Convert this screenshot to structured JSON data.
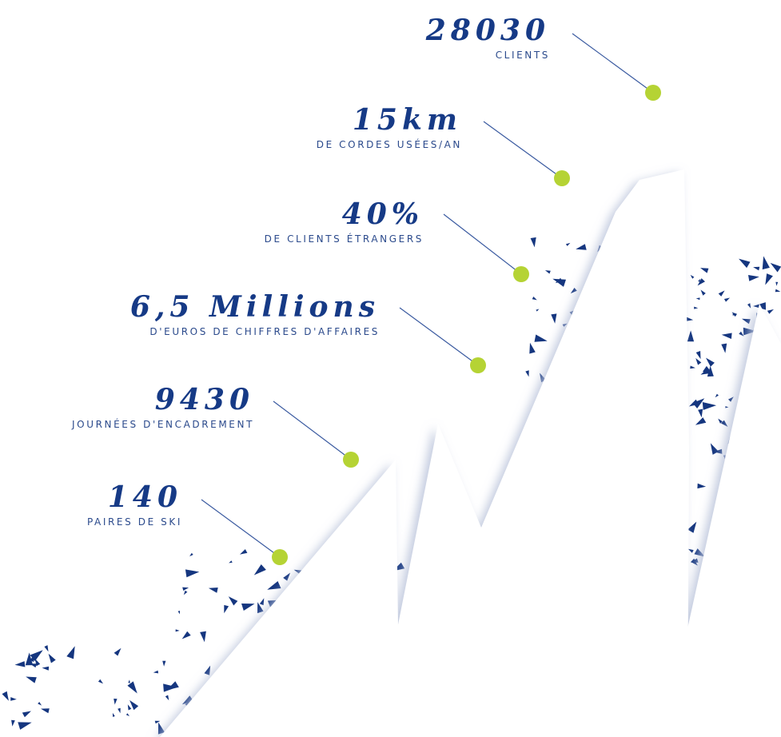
{
  "stats": [
    {
      "value": "28030",
      "label": "CLIENTS"
    },
    {
      "value": "15km",
      "label": "DE CORDES USÉES/AN"
    },
    {
      "value": "40%",
      "label": "DE CLIENTS ÉTRANGERS"
    },
    {
      "value": "6,5 Millions",
      "label": "D'EUROS DE CHIFFRES D'AFFAIRES"
    },
    {
      "value": "9430",
      "label": "JOURNÉES D'ENCADREMENT"
    },
    {
      "value": "140",
      "label": "PAIRES DE SKI"
    }
  ]
}
